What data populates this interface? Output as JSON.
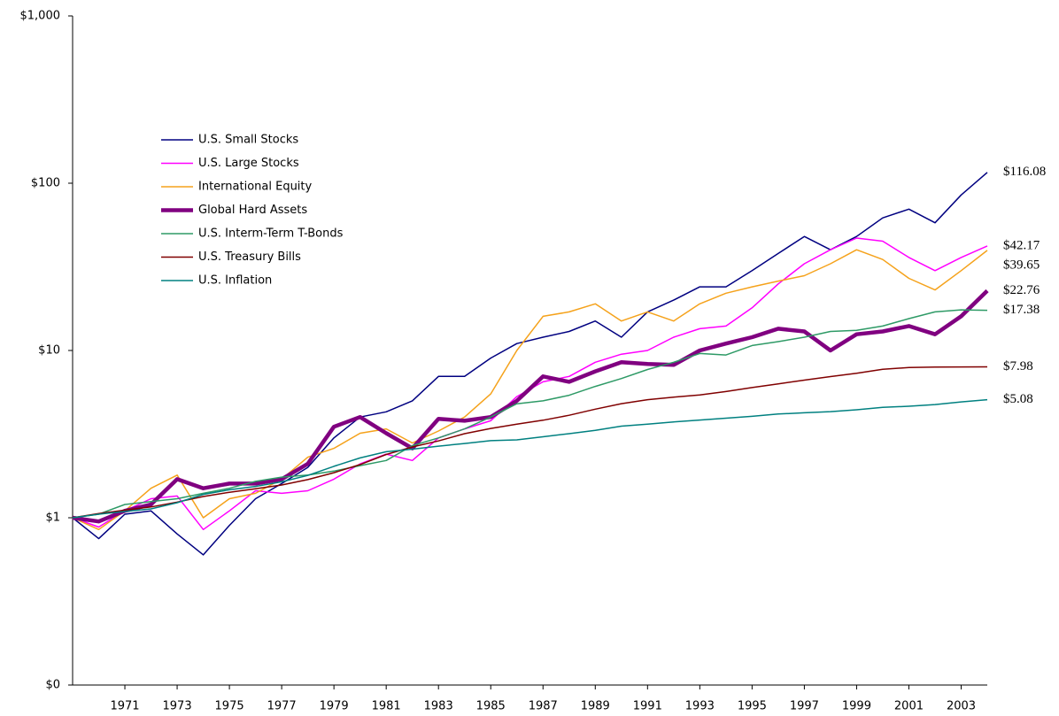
{
  "chart_data": {
    "type": "line",
    "log_scale": true,
    "legend": "upper-left",
    "xlim": [
      1969,
      2004
    ],
    "xticks": [
      1971,
      1973,
      1975,
      1977,
      1979,
      1981,
      1983,
      1985,
      1987,
      1989,
      1991,
      1993,
      1995,
      1997,
      1999,
      2001,
      2003
    ],
    "ylim": [
      0.1,
      1000
    ],
    "yticks": [
      {
        "value": 0.1,
        "label": "$0"
      },
      {
        "value": 1,
        "label": "$1"
      },
      {
        "value": 10,
        "label": "$10"
      },
      {
        "value": 100,
        "label": "$100"
      },
      {
        "value": 1000,
        "label": "$1,000"
      }
    ],
    "x": [
      1969,
      1970,
      1971,
      1972,
      1973,
      1974,
      1975,
      1976,
      1977,
      1978,
      1979,
      1980,
      1981,
      1982,
      1983,
      1984,
      1985,
      1986,
      1987,
      1988,
      1989,
      1990,
      1991,
      1992,
      1993,
      1994,
      1995,
      1996,
      1997,
      1998,
      1999,
      2000,
      2001,
      2002,
      2003,
      2004
    ],
    "series": [
      {
        "name": "U.S. Small Stocks",
        "color": "#000080",
        "width": 1.5,
        "values": [
          1,
          0.75,
          1.05,
          1.1,
          0.8,
          0.6,
          0.9,
          1.3,
          1.6,
          2.0,
          3.0,
          4.0,
          4.3,
          5,
          7,
          7,
          9,
          11,
          12,
          13,
          15,
          12,
          17,
          20,
          24,
          24,
          30,
          38,
          48,
          40,
          48,
          62,
          70,
          58,
          85,
          116.08
        ],
        "value_labels": [
          null,
          null,
          null,
          null,
          null,
          null,
          null,
          null,
          null,
          null,
          null,
          null,
          null,
          null,
          null,
          null,
          null,
          null,
          null,
          null,
          null,
          null,
          null,
          null,
          null,
          null,
          null,
          null,
          null,
          null,
          null,
          null,
          null,
          null,
          null,
          "$116.08"
        ]
      },
      {
        "name": "U.S. Large Stocks",
        "color": "#ff00ff",
        "width": 1.5,
        "values": [
          1,
          0.88,
          1.1,
          1.3,
          1.35,
          0.85,
          1.1,
          1.45,
          1.4,
          1.45,
          1.7,
          2.1,
          2.4,
          2.2,
          3.0,
          3.4,
          3.8,
          5.3,
          6.5,
          7,
          8.5,
          9.5,
          10,
          12,
          13.5,
          14,
          18,
          25,
          33,
          40,
          47,
          45,
          36,
          30,
          36,
          42.17
        ],
        "value_labels": [
          null,
          null,
          null,
          null,
          null,
          null,
          null,
          null,
          null,
          null,
          null,
          null,
          null,
          null,
          null,
          null,
          null,
          null,
          null,
          null,
          null,
          null,
          null,
          null,
          null,
          null,
          null,
          null,
          null,
          null,
          null,
          null,
          null,
          null,
          null,
          "$42.17"
        ]
      },
      {
        "name": "International Equity",
        "color": "#f5a21b",
        "width": 1.5,
        "values": [
          1,
          0.85,
          1.1,
          1.5,
          1.8,
          1.0,
          1.3,
          1.4,
          1.7,
          2.3,
          2.6,
          3.2,
          3.4,
          2.8,
          3.3,
          4.0,
          5.5,
          10,
          16,
          17,
          19,
          15,
          17,
          15,
          19,
          22,
          24,
          26,
          28,
          33,
          40,
          35,
          27,
          23,
          30,
          39.65
        ],
        "value_labels": [
          null,
          null,
          null,
          null,
          null,
          null,
          null,
          null,
          null,
          null,
          null,
          null,
          null,
          null,
          null,
          null,
          null,
          null,
          null,
          null,
          null,
          null,
          null,
          null,
          null,
          null,
          null,
          null,
          null,
          null,
          null,
          null,
          null,
          null,
          null,
          "$39.65"
        ]
      },
      {
        "name": "Global Hard Assets",
        "color": "#800080",
        "width": 4.5,
        "values": [
          1,
          0.95,
          1.1,
          1.2,
          1.7,
          1.5,
          1.6,
          1.6,
          1.7,
          2.1,
          3.5,
          4.0,
          3.2,
          2.6,
          3.9,
          3.8,
          4.0,
          5.0,
          7.0,
          6.5,
          7.5,
          8.5,
          8.3,
          8.2,
          10,
          11,
          12,
          13.5,
          13,
          10,
          12.5,
          13,
          14,
          12.5,
          16,
          22.76
        ],
        "value_labels": [
          null,
          null,
          null,
          null,
          null,
          null,
          null,
          null,
          null,
          null,
          null,
          null,
          null,
          null,
          null,
          null,
          null,
          null,
          null,
          null,
          null,
          null,
          null,
          null,
          null,
          null,
          null,
          null,
          null,
          null,
          null,
          null,
          null,
          null,
          null,
          "$22.76"
        ]
      },
      {
        "name": "U.S. Interm-Term T-Bonds",
        "color": "#2e9a66",
        "width": 1.5,
        "values": [
          1,
          1.05,
          1.2,
          1.25,
          1.3,
          1.4,
          1.5,
          1.65,
          1.75,
          1.8,
          1.9,
          2.05,
          2.2,
          2.7,
          3.0,
          3.4,
          4.0,
          4.8,
          5.0,
          5.4,
          6.1,
          6.8,
          7.7,
          8.5,
          9.6,
          9.4,
          10.7,
          11.3,
          12,
          13,
          13.2,
          14,
          15.5,
          17,
          17.5,
          17.38
        ],
        "value_labels": [
          null,
          null,
          null,
          null,
          null,
          null,
          null,
          null,
          null,
          null,
          null,
          null,
          null,
          null,
          null,
          null,
          null,
          null,
          null,
          null,
          null,
          null,
          null,
          null,
          null,
          null,
          null,
          null,
          null,
          null,
          null,
          null,
          null,
          null,
          null,
          "$17.38"
        ]
      },
      {
        "name": "U.S. Treasury Bills",
        "color": "#800000",
        "width": 1.5,
        "values": [
          1.0,
          1.06,
          1.11,
          1.16,
          1.24,
          1.34,
          1.42,
          1.49,
          1.57,
          1.69,
          1.86,
          2.08,
          2.39,
          2.65,
          2.88,
          3.18,
          3.42,
          3.63,
          3.83,
          4.1,
          4.46,
          4.81,
          5.08,
          5.26,
          5.42,
          5.68,
          6.0,
          6.32,
          6.65,
          6.98,
          7.3,
          7.72,
          7.9,
          7.95,
          7.97,
          7.98
        ],
        "value_labels": [
          null,
          null,
          null,
          null,
          null,
          null,
          null,
          null,
          null,
          null,
          null,
          null,
          null,
          null,
          null,
          null,
          null,
          null,
          null,
          null,
          null,
          null,
          null,
          null,
          null,
          null,
          null,
          null,
          null,
          null,
          null,
          null,
          null,
          null,
          null,
          "$7.98"
        ]
      },
      {
        "name": "U.S. Inflation",
        "color": "#008080",
        "width": 1.5,
        "values": [
          1.0,
          1.05,
          1.09,
          1.13,
          1.23,
          1.38,
          1.47,
          1.54,
          1.64,
          1.79,
          2.03,
          2.28,
          2.48,
          2.57,
          2.68,
          2.78,
          2.89,
          2.92,
          3.05,
          3.18,
          3.33,
          3.53,
          3.63,
          3.74,
          3.84,
          3.94,
          4.04,
          4.17,
          4.24,
          4.31,
          4.42,
          4.57,
          4.64,
          4.75,
          4.93,
          5.08
        ],
        "value_labels": [
          null,
          null,
          null,
          null,
          null,
          null,
          null,
          null,
          null,
          null,
          null,
          null,
          null,
          null,
          null,
          null,
          null,
          null,
          null,
          null,
          null,
          null,
          null,
          null,
          null,
          null,
          null,
          null,
          null,
          null,
          null,
          null,
          null,
          null,
          null,
          "$5.08"
        ]
      }
    ]
  }
}
